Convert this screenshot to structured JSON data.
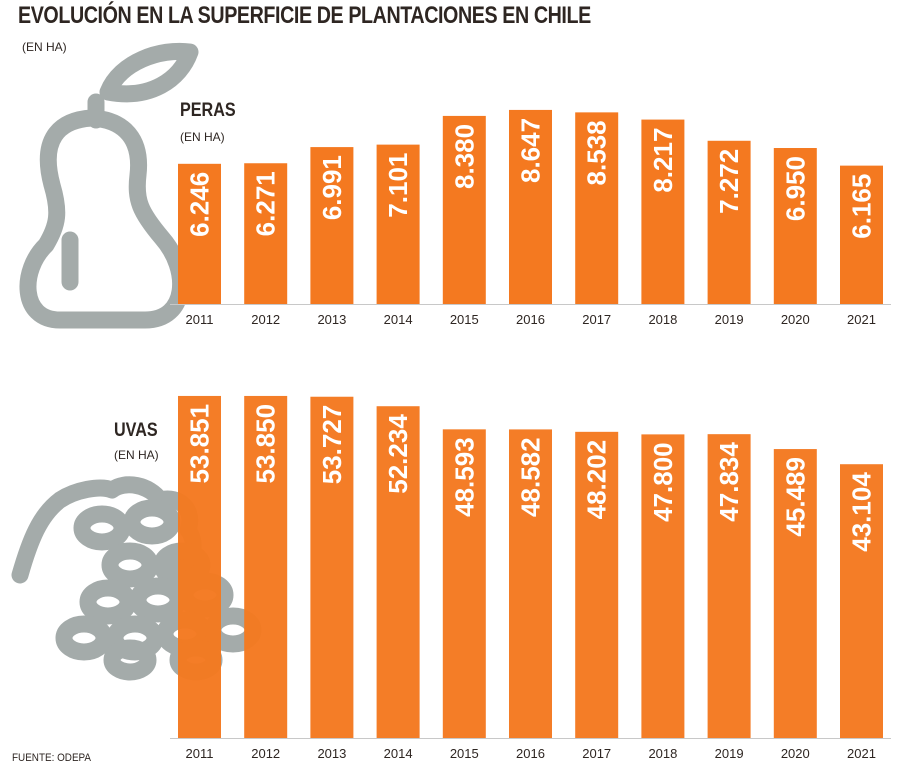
{
  "title": "EVOLUCIÓN EN LA SUPERFICIE DE PLANTACIONES EN CHILE",
  "subtitle": "(EN HA)",
  "source": "FUENTE: ODEPA",
  "colors": {
    "bar": "#f47920",
    "icon": "#a4abaa",
    "icon_overlap": "#7d5835",
    "text": "#2e2622"
  },
  "icons": [
    "pear-icon",
    "grapes-icon"
  ],
  "chart_data": [
    {
      "type": "bar",
      "title": "PERAS",
      "subtitle": "(EN HA)",
      "categories": [
        "2011",
        "2012",
        "2013",
        "2014",
        "2015",
        "2016",
        "2017",
        "2018",
        "2019",
        "2020",
        "2021"
      ],
      "values": [
        6246,
        6271,
        6991,
        7101,
        8380,
        8647,
        8538,
        8217,
        7272,
        6950,
        6165
      ],
      "value_labels": [
        "6.246",
        "6.271",
        "6.991",
        "7.101",
        "8.380",
        "8.647",
        "8.538",
        "8.217",
        "7.272",
        "6.950",
        "6.165"
      ],
      "xlabel": "",
      "ylabel": "",
      "ylim": [
        0,
        9000
      ],
      "grid": false,
      "legend": "none"
    },
    {
      "type": "bar",
      "title": "UVAS",
      "subtitle": "(EN HA)",
      "categories": [
        "2011",
        "2012",
        "2013",
        "2014",
        "2015",
        "2016",
        "2017",
        "2018",
        "2019",
        "2020",
        "2021"
      ],
      "values": [
        53851,
        53850,
        53727,
        52234,
        48593,
        48582,
        48202,
        47800,
        47834,
        45489,
        43104
      ],
      "value_labels": [
        "53.851",
        "53.850",
        "53.727",
        "52.234",
        "48.593",
        "48.582",
        "48.202",
        "47.800",
        "47.834",
        "45.489",
        "43.104"
      ],
      "xlabel": "",
      "ylabel": "",
      "ylim": [
        0,
        54000
      ],
      "grid": false,
      "legend": "none"
    }
  ]
}
